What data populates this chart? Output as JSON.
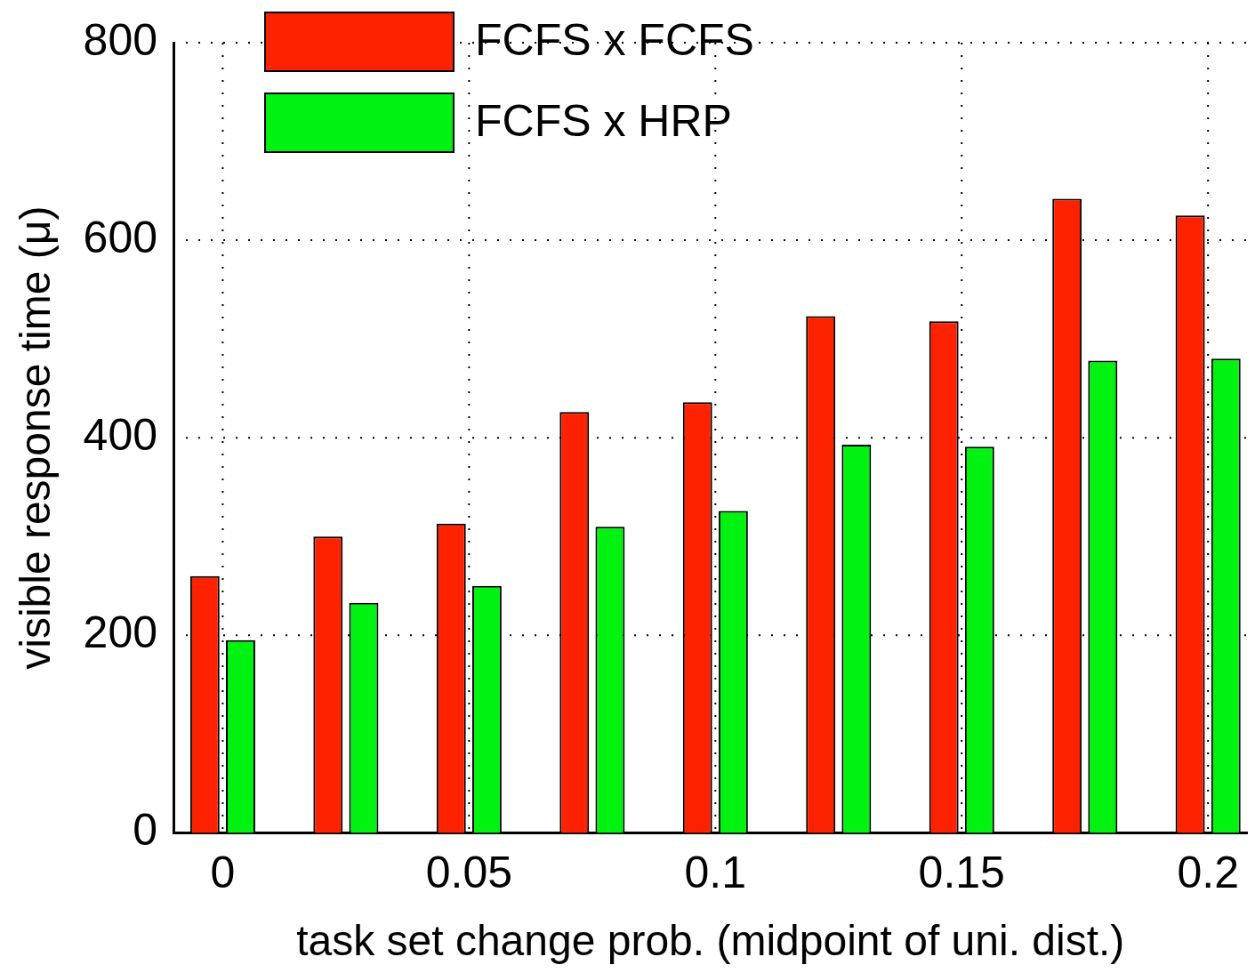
{
  "chart_data": {
    "type": "bar",
    "xlabel": "task set change prob. (midpoint of uni. dist.)",
    "ylabel": "visible response time (μ)",
    "x": [
      0,
      0.025,
      0.05,
      0.075,
      0.1,
      0.125,
      0.15,
      0.175,
      0.2
    ],
    "series": [
      {
        "name": "FCFS x FCFS",
        "color": "#ff2200",
        "values": [
          260,
          300,
          313,
          426,
          436,
          523,
          518,
          642,
          625
        ]
      },
      {
        "name": "FCFS x HRP",
        "color": "#00f210",
        "values": [
          195,
          233,
          250,
          310,
          326,
          393,
          391,
          478,
          480
        ]
      }
    ],
    "xlim": [
      -0.01,
      0.208
    ],
    "xticks": [
      0,
      0.05,
      0.1,
      0.15,
      0.2
    ],
    "ylim": [
      0,
      800
    ],
    "yticks": [
      0,
      200,
      400,
      600,
      800
    ],
    "grid": true,
    "legend": "top left"
  }
}
